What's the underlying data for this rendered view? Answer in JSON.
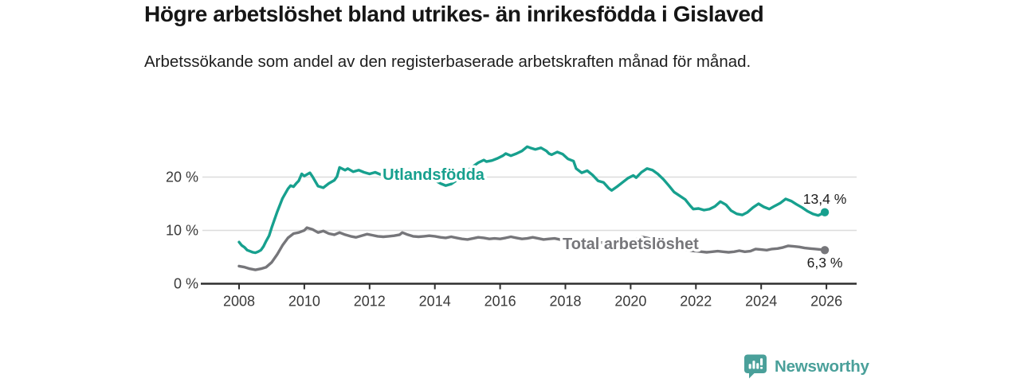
{
  "header": {
    "title": "Högre arbetslöshet bland utrikes- än inrikesfödda i Gislaved",
    "subtitle": "Arbetssökande som andel av den registerbaserade arbetskraften månad för månad."
  },
  "footer": {
    "brand": "Newsworthy",
    "logo_icon": "bar-chart-speech-bubble-icon"
  },
  "colors": {
    "foreign_born_line": "#17a08e",
    "total_line": "#76767a",
    "grid": "#dcdcdc",
    "axis": "#2f2f2f",
    "tick_text": "#3a3a3a",
    "value_label_text": "#1c1c1c",
    "brand": "#4aa09a"
  },
  "chart_data": {
    "type": "line",
    "title": "Högre arbetslöshet bland utrikes- än inrikesfödda i Gislaved",
    "subtitle": "Arbetssökande som andel av den registerbaserade arbetskraften månad för månad.",
    "unit": "%",
    "grid": true,
    "legend_position": "inline-labels-on-lines",
    "xlim": [
      2006.9,
      2026.9
    ],
    "ylim": [
      0,
      27.5
    ],
    "x_ticks": [
      2008,
      2010,
      2012,
      2014,
      2016,
      2018,
      2020,
      2022,
      2024,
      2026
    ],
    "y_ticks": [
      {
        "value": 0,
        "label": "0 %"
      },
      {
        "value": 10,
        "label": "10 %"
      },
      {
        "value": 20,
        "label": "20 %"
      }
    ],
    "series": [
      {
        "name": "Utlandsfödda",
        "color": "#17a08e",
        "end_value": 13.4,
        "end_label": "13,4 %",
        "end_label_position": "above",
        "inline_label_at": {
          "x": 2013.96,
          "y": 19.5
        },
        "points": [
          [
            2008.0,
            7.8
          ],
          [
            2008.08,
            7.2
          ],
          [
            2008.17,
            6.8
          ],
          [
            2008.25,
            6.3
          ],
          [
            2008.33,
            6.1
          ],
          [
            2008.42,
            5.9
          ],
          [
            2008.5,
            5.8
          ],
          [
            2008.58,
            6.0
          ],
          [
            2008.67,
            6.3
          ],
          [
            2008.75,
            7.0
          ],
          [
            2008.83,
            8.0
          ],
          [
            2008.92,
            9.0
          ],
          [
            2009.0,
            10.5
          ],
          [
            2009.17,
            13.5
          ],
          [
            2009.33,
            16.0
          ],
          [
            2009.5,
            17.8
          ],
          [
            2009.58,
            18.4
          ],
          [
            2009.67,
            18.2
          ],
          [
            2009.75,
            18.8
          ],
          [
            2009.83,
            19.3
          ],
          [
            2009.92,
            20.6
          ],
          [
            2010.0,
            20.2
          ],
          [
            2010.08,
            20.5
          ],
          [
            2010.17,
            20.8
          ],
          [
            2010.25,
            20.1
          ],
          [
            2010.42,
            18.3
          ],
          [
            2010.58,
            18.0
          ],
          [
            2010.75,
            18.8
          ],
          [
            2010.92,
            19.4
          ],
          [
            2011.0,
            20.1
          ],
          [
            2011.08,
            21.8
          ],
          [
            2011.25,
            21.3
          ],
          [
            2011.33,
            21.6
          ],
          [
            2011.5,
            21.0
          ],
          [
            2011.67,
            21.3
          ],
          [
            2011.83,
            20.9
          ],
          [
            2012.0,
            20.6
          ],
          [
            2012.17,
            20.9
          ],
          [
            2012.33,
            20.5
          ],
          [
            2012.5,
            20.7
          ],
          [
            2012.67,
            20.9
          ],
          [
            2012.83,
            20.7
          ],
          [
            2013.0,
            20.8
          ],
          [
            2013.17,
            20.6
          ],
          [
            2013.33,
            20.7
          ],
          [
            2013.5,
            20.5
          ],
          [
            2013.67,
            20.4
          ],
          [
            2013.83,
            20.0
          ],
          [
            2014.0,
            19.4
          ],
          [
            2014.17,
            18.8
          ],
          [
            2014.33,
            18.4
          ],
          [
            2014.5,
            18.7
          ],
          [
            2014.67,
            19.4
          ],
          [
            2014.83,
            20.3
          ],
          [
            2015.0,
            21.2
          ],
          [
            2015.17,
            22.0
          ],
          [
            2015.33,
            22.7
          ],
          [
            2015.5,
            23.2
          ],
          [
            2015.58,
            22.9
          ],
          [
            2015.75,
            23.1
          ],
          [
            2015.92,
            23.5
          ],
          [
            2016.08,
            24.0
          ],
          [
            2016.17,
            24.4
          ],
          [
            2016.33,
            24.0
          ],
          [
            2016.5,
            24.4
          ],
          [
            2016.67,
            24.9
          ],
          [
            2016.83,
            25.7
          ],
          [
            2016.92,
            25.5
          ],
          [
            2017.08,
            25.2
          ],
          [
            2017.25,
            25.5
          ],
          [
            2017.42,
            24.9
          ],
          [
            2017.5,
            24.4
          ],
          [
            2017.58,
            24.2
          ],
          [
            2017.75,
            24.7
          ],
          [
            2017.92,
            24.3
          ],
          [
            2018.08,
            23.4
          ],
          [
            2018.25,
            23.0
          ],
          [
            2018.33,
            21.6
          ],
          [
            2018.5,
            20.8
          ],
          [
            2018.67,
            21.2
          ],
          [
            2018.83,
            20.4
          ],
          [
            2019.0,
            19.3
          ],
          [
            2019.17,
            19.0
          ],
          [
            2019.33,
            17.9
          ],
          [
            2019.42,
            17.5
          ],
          [
            2019.58,
            18.2
          ],
          [
            2019.75,
            19.0
          ],
          [
            2019.92,
            19.8
          ],
          [
            2020.08,
            20.3
          ],
          [
            2020.17,
            19.9
          ],
          [
            2020.33,
            20.9
          ],
          [
            2020.5,
            21.6
          ],
          [
            2020.67,
            21.3
          ],
          [
            2020.83,
            20.6
          ],
          [
            2021.0,
            19.6
          ],
          [
            2021.17,
            18.4
          ],
          [
            2021.33,
            17.2
          ],
          [
            2021.5,
            16.5
          ],
          [
            2021.67,
            15.8
          ],
          [
            2021.83,
            14.6
          ],
          [
            2021.92,
            14.0
          ],
          [
            2022.08,
            14.1
          ],
          [
            2022.25,
            13.8
          ],
          [
            2022.42,
            14.0
          ],
          [
            2022.58,
            14.5
          ],
          [
            2022.75,
            15.4
          ],
          [
            2022.92,
            14.8
          ],
          [
            2023.08,
            13.7
          ],
          [
            2023.25,
            13.1
          ],
          [
            2023.42,
            12.9
          ],
          [
            2023.58,
            13.4
          ],
          [
            2023.75,
            14.3
          ],
          [
            2023.92,
            15.0
          ],
          [
            2024.08,
            14.4
          ],
          [
            2024.25,
            14.0
          ],
          [
            2024.42,
            14.6
          ],
          [
            2024.58,
            15.1
          ],
          [
            2024.75,
            15.9
          ],
          [
            2024.92,
            15.5
          ],
          [
            2025.08,
            14.9
          ],
          [
            2025.25,
            14.3
          ],
          [
            2025.42,
            13.6
          ],
          [
            2025.58,
            13.1
          ],
          [
            2025.75,
            12.8
          ],
          [
            2025.95,
            13.4
          ]
        ]
      },
      {
        "name": "Total arbetslöshet",
        "color": "#76767a",
        "end_value": 6.3,
        "end_label": "6,3 %",
        "end_label_position": "below",
        "inline_label_at": {
          "x": 2020.0,
          "y": 6.5
        },
        "points": [
          [
            2008.0,
            3.3
          ],
          [
            2008.17,
            3.1
          ],
          [
            2008.33,
            2.8
          ],
          [
            2008.5,
            2.6
          ],
          [
            2008.67,
            2.8
          ],
          [
            2008.83,
            3.1
          ],
          [
            2009.0,
            4.0
          ],
          [
            2009.17,
            5.5
          ],
          [
            2009.33,
            7.2
          ],
          [
            2009.5,
            8.6
          ],
          [
            2009.67,
            9.4
          ],
          [
            2009.83,
            9.6
          ],
          [
            2010.0,
            10.0
          ],
          [
            2010.08,
            10.5
          ],
          [
            2010.25,
            10.2
          ],
          [
            2010.42,
            9.6
          ],
          [
            2010.58,
            9.9
          ],
          [
            2010.75,
            9.4
          ],
          [
            2010.92,
            9.2
          ],
          [
            2011.08,
            9.6
          ],
          [
            2011.25,
            9.2
          ],
          [
            2011.42,
            8.9
          ],
          [
            2011.58,
            8.7
          ],
          [
            2011.75,
            9.0
          ],
          [
            2011.92,
            9.3
          ],
          [
            2012.08,
            9.1
          ],
          [
            2012.25,
            8.9
          ],
          [
            2012.42,
            8.8
          ],
          [
            2012.58,
            8.9
          ],
          [
            2012.75,
            9.0
          ],
          [
            2012.92,
            9.2
          ],
          [
            2013.0,
            9.6
          ],
          [
            2013.17,
            9.2
          ],
          [
            2013.33,
            8.9
          ],
          [
            2013.5,
            8.8
          ],
          [
            2013.67,
            8.9
          ],
          [
            2013.83,
            9.0
          ],
          [
            2014.0,
            8.9
          ],
          [
            2014.17,
            8.7
          ],
          [
            2014.33,
            8.6
          ],
          [
            2014.5,
            8.8
          ],
          [
            2014.67,
            8.6
          ],
          [
            2014.83,
            8.4
          ],
          [
            2015.0,
            8.3
          ],
          [
            2015.17,
            8.5
          ],
          [
            2015.33,
            8.7
          ],
          [
            2015.5,
            8.6
          ],
          [
            2015.67,
            8.4
          ],
          [
            2015.83,
            8.5
          ],
          [
            2016.0,
            8.4
          ],
          [
            2016.17,
            8.6
          ],
          [
            2016.33,
            8.8
          ],
          [
            2016.5,
            8.6
          ],
          [
            2016.67,
            8.4
          ],
          [
            2016.83,
            8.5
          ],
          [
            2017.0,
            8.7
          ],
          [
            2017.17,
            8.5
          ],
          [
            2017.33,
            8.3
          ],
          [
            2017.5,
            8.4
          ],
          [
            2017.67,
            8.5
          ],
          [
            2017.83,
            8.3
          ],
          [
            2018.0,
            8.2
          ],
          [
            2018.17,
            8.1
          ],
          [
            2018.33,
            8.0
          ],
          [
            2018.5,
            7.9
          ],
          [
            2018.67,
            7.9
          ],
          [
            2018.83,
            7.8
          ],
          [
            2019.0,
            7.8
          ],
          [
            2019.17,
            7.7
          ],
          [
            2019.33,
            7.6
          ],
          [
            2019.5,
            7.6
          ],
          [
            2019.67,
            7.7
          ],
          [
            2019.83,
            7.8
          ],
          [
            2020.0,
            7.9
          ],
          [
            2020.17,
            8.3
          ],
          [
            2020.33,
            8.8
          ],
          [
            2020.5,
            8.6
          ],
          [
            2020.67,
            8.3
          ],
          [
            2020.83,
            8.0
          ],
          [
            2021.0,
            7.6
          ],
          [
            2021.17,
            7.2
          ],
          [
            2021.33,
            6.9
          ],
          [
            2021.5,
            6.6
          ],
          [
            2021.67,
            6.4
          ],
          [
            2021.83,
            6.2
          ],
          [
            2022.0,
            6.1
          ],
          [
            2022.17,
            6.0
          ],
          [
            2022.33,
            5.9
          ],
          [
            2022.5,
            6.0
          ],
          [
            2022.67,
            6.1
          ],
          [
            2022.83,
            6.0
          ],
          [
            2023.0,
            5.9
          ],
          [
            2023.17,
            6.0
          ],
          [
            2023.33,
            6.2
          ],
          [
            2023.5,
            6.0
          ],
          [
            2023.67,
            6.1
          ],
          [
            2023.83,
            6.5
          ],
          [
            2024.0,
            6.4
          ],
          [
            2024.17,
            6.3
          ],
          [
            2024.33,
            6.5
          ],
          [
            2024.5,
            6.6
          ],
          [
            2024.67,
            6.8
          ],
          [
            2024.83,
            7.1
          ],
          [
            2025.0,
            7.0
          ],
          [
            2025.17,
            6.9
          ],
          [
            2025.33,
            6.7
          ],
          [
            2025.5,
            6.6
          ],
          [
            2025.67,
            6.5
          ],
          [
            2025.83,
            6.4
          ],
          [
            2025.95,
            6.3
          ]
        ]
      }
    ]
  }
}
